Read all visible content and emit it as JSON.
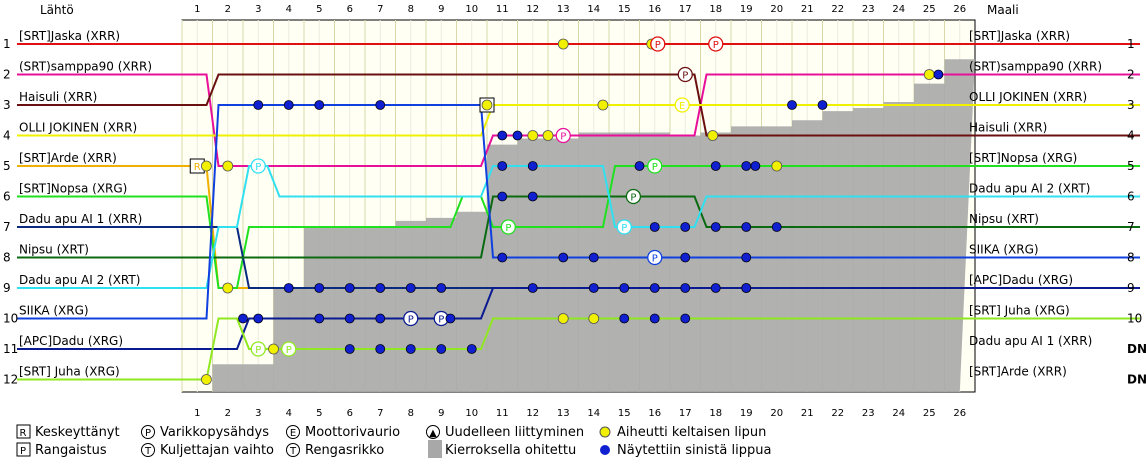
{
  "chart_data": {
    "type": "line",
    "header": {
      "left": "Lähtö",
      "right": "Maali"
    },
    "laps": [
      1,
      2,
      3,
      4,
      5,
      6,
      7,
      8,
      9,
      10,
      11,
      12,
      13,
      14,
      15,
      16,
      17,
      18,
      19,
      20,
      21,
      22,
      23,
      24,
      25,
      26
    ],
    "positions": [
      1,
      2,
      3,
      4,
      5,
      6,
      7,
      8,
      9,
      10,
      11,
      12
    ],
    "start_order": [
      "[SRT]Jaska (XRR)",
      "(SRT)samppa90 (XRR)",
      "Haisuli (XRR)",
      "OLLI JOKINEN (XRR)",
      "[SRT]Arde (XRR)",
      "[SRT]Nopsa (XRG)",
      "Dadu apu AI 1 (XRR)",
      "Nipsu (XRT)",
      "Dadu apu AI 2 (XRT)",
      "SIIKA (XRG)",
      "[APC]Dadu (XRG)",
      "[SRT] Juha (XRG)"
    ],
    "finish_order": [
      "[SRT]Jaska (XRR)",
      "(SRT)samppa90 (XRR)",
      "OLLI JOKINEN (XRR)",
      "Haisuli (XRR)",
      "[SRT]Nopsa (XRG)",
      "Dadu apu AI 2 (XRT)",
      "Nipsu (XRT)",
      "SIIKA (XRG)",
      "[APC]Dadu (XRG)",
      "[SRT] Juha (XRG)",
      "Dadu apu AI 1 (XRR)",
      "[SRT]Arde (XRR)"
    ],
    "finish_marks": [
      "1",
      "2",
      "3",
      "4",
      "5",
      "6",
      "7",
      "8",
      "9",
      "10",
      "DNF",
      "DNF"
    ],
    "series": [
      {
        "name": "[SRT]Jaska (XRR)",
        "color": "#e01010",
        "positions": [
          1,
          1,
          1,
          1,
          1,
          1,
          1,
          1,
          1,
          1,
          1,
          1,
          1,
          1,
          1,
          1,
          1,
          1,
          1,
          1,
          1,
          1,
          1,
          1,
          1,
          1
        ],
        "end_lap": 26,
        "markers": [
          {
            "lap": 13,
            "type": "yellow"
          },
          {
            "lap": 15.9,
            "type": "yellow"
          },
          {
            "lap": 16.1,
            "type": "P"
          },
          {
            "lap": 18,
            "type": "P"
          }
        ]
      },
      {
        "name": "(SRT)samppa90 (XRR)",
        "color": "#e8109a",
        "positions": [
          2,
          5,
          5,
          5,
          5,
          5,
          5,
          5,
          5,
          5,
          4,
          4,
          4,
          4,
          4,
          4,
          4,
          2,
          2,
          2,
          2,
          2,
          2,
          2,
          2,
          2
        ],
        "end_lap": 26,
        "markers": [
          {
            "lap": 2,
            "type": "yellow"
          },
          {
            "lap": 11,
            "type": "blue"
          },
          {
            "lap": 11.5,
            "type": "blue"
          },
          {
            "lap": 12,
            "type": "yellow"
          },
          {
            "lap": 12.5,
            "type": "yellow"
          },
          {
            "lap": 13,
            "type": "P"
          },
          {
            "lap": 25,
            "type": "yellow"
          },
          {
            "lap": 25.3,
            "type": "blue"
          }
        ]
      },
      {
        "name": "Haisuli (XRR)",
        "color": "#6a1010",
        "positions": [
          3,
          2,
          2,
          2,
          2,
          2,
          2,
          2,
          2,
          2,
          2,
          2,
          2,
          2,
          2,
          2,
          2,
          4,
          4,
          4,
          4,
          4,
          4,
          4,
          4,
          4
        ],
        "end_lap": 26,
        "markers": [
          {
            "lap": 17,
            "type": "P"
          },
          {
            "lap": 17.9,
            "type": "yellow"
          }
        ]
      },
      {
        "name": "OLLI JOKINEN (XRR)",
        "color": "#f0f000",
        "positions": [
          4,
          4,
          4,
          4,
          4,
          4,
          4,
          4,
          4,
          4,
          3,
          3,
          3,
          3,
          3,
          3,
          3,
          3,
          3,
          3,
          3,
          3,
          3,
          3,
          3,
          3
        ],
        "end_lap": 26,
        "markers": [
          {
            "lap": 10.5,
            "type": "R"
          },
          {
            "lap": 10.5,
            "type": "yellow"
          },
          {
            "lap": 14.3,
            "type": "yellow"
          },
          {
            "lap": 16.9,
            "type": "E"
          },
          {
            "lap": 20.5,
            "type": "blue"
          },
          {
            "lap": 21.5,
            "type": "blue"
          }
        ]
      },
      {
        "name": "[SRT]Arde (XRR)",
        "color": "#f0b000",
        "positions": [
          5,
          9,
          9,
          9,
          9,
          9,
          9,
          9,
          9,
          9,
          9,
          9,
          9,
          9,
          9,
          9,
          9,
          9,
          9,
          9,
          9,
          9,
          9,
          9,
          9,
          9
        ],
        "end_lap": null,
        "markers": [
          {
            "lap": 1,
            "type": "R"
          },
          {
            "lap": 1.3,
            "type": "yellow"
          },
          {
            "lap": 2,
            "type": "yellow"
          }
        ]
      },
      {
        "name": "[SRT]Nopsa (XRG)",
        "color": "#20e020",
        "positions": [
          6,
          9,
          7,
          7,
          7,
          7,
          7,
          7,
          7,
          6,
          7,
          7,
          7,
          7,
          5,
          5,
          5,
          5,
          5,
          5,
          5,
          5,
          5,
          5,
          5,
          5
        ],
        "end_lap": 26,
        "markers": [
          {
            "lap": 11.2,
            "type": "P"
          },
          {
            "lap": 15.5,
            "type": "blue"
          },
          {
            "lap": 16,
            "type": "P"
          },
          {
            "lap": 18,
            "type": "blue"
          },
          {
            "lap": 19,
            "type": "blue"
          },
          {
            "lap": 19.3,
            "type": "blue"
          },
          {
            "lap": 20,
            "type": "yellow"
          }
        ]
      },
      {
        "name": "Dadu apu AI 1 (XRR)",
        "color": "#0a2a80",
        "positions": [
          7,
          7,
          9,
          9,
          9,
          9,
          9,
          9,
          9,
          9,
          9,
          9,
          9,
          9,
          9,
          9,
          9,
          9,
          9,
          9,
          9,
          9,
          9,
          9,
          9,
          9
        ],
        "end_lap": null,
        "markers": [
          {
            "lap": 4,
            "type": "blue"
          },
          {
            "lap": 5,
            "type": "blue"
          },
          {
            "lap": 6,
            "type": "blue"
          },
          {
            "lap": 7,
            "type": "blue"
          },
          {
            "lap": 8,
            "type": "blue"
          },
          {
            "lap": 9,
            "type": "blue"
          },
          {
            "lap": 19,
            "type": "blue"
          }
        ]
      },
      {
        "name": "Nipsu (XRT)",
        "color": "#0a6a10",
        "positions": [
          8,
          8,
          8,
          8,
          8,
          8,
          8,
          8,
          8,
          8,
          6,
          6,
          6,
          6,
          6,
          6,
          6,
          7,
          7,
          7,
          7,
          7,
          7,
          7,
          7,
          7
        ],
        "end_lap": 26,
        "markers": [
          {
            "lap": 11,
            "type": "blue"
          },
          {
            "lap": 12,
            "type": "blue"
          },
          {
            "lap": 15.3,
            "type": "P"
          },
          {
            "lap": 18,
            "type": "blue"
          },
          {
            "lap": 19,
            "type": "blue"
          },
          {
            "lap": 20,
            "type": "blue"
          }
        ]
      },
      {
        "name": "Dadu apu AI 2 (XRT)",
        "color": "#30e0f0",
        "positions": [
          9,
          7,
          5,
          6,
          6,
          6,
          6,
          6,
          6,
          6,
          5,
          5,
          5,
          5,
          7,
          7,
          7,
          6,
          6,
          6,
          6,
          6,
          6,
          6,
          6,
          6
        ],
        "end_lap": 26,
        "markers": [
          {
            "lap": 3,
            "type": "P"
          },
          {
            "lap": 11,
            "type": "blue"
          },
          {
            "lap": 12,
            "type": "blue"
          },
          {
            "lap": 15,
            "type": "P"
          },
          {
            "lap": 16,
            "type": "blue"
          },
          {
            "lap": 17,
            "type": "blue"
          }
        ]
      },
      {
        "name": "SIIKA (XRG)",
        "color": "#1040e0",
        "positions": [
          10,
          3,
          3,
          3,
          3,
          3,
          3,
          3,
          3,
          3,
          8,
          8,
          8,
          8,
          8,
          8,
          8,
          8,
          8,
          8,
          8,
          8,
          8,
          8,
          8,
          8
        ],
        "end_lap": 26,
        "markers": [
          {
            "lap": 3,
            "type": "blue"
          },
          {
            "lap": 4,
            "type": "blue"
          },
          {
            "lap": 5,
            "type": "blue"
          },
          {
            "lap": 7,
            "type": "blue"
          },
          {
            "lap": 11,
            "type": "blue"
          },
          {
            "lap": 13,
            "type": "blue"
          },
          {
            "lap": 14,
            "type": "blue"
          },
          {
            "lap": 16,
            "type": "P"
          },
          {
            "lap": 17,
            "type": "blue"
          },
          {
            "lap": 19,
            "type": "blue"
          }
        ]
      },
      {
        "name": "[APC]Dadu (XRG)",
        "color": "#0a1a90",
        "positions": [
          11,
          11,
          10,
          10,
          10,
          10,
          10,
          10,
          10,
          10,
          9,
          9,
          9,
          9,
          9,
          9,
          9,
          9,
          9,
          9,
          9,
          9,
          9,
          9,
          9,
          9
        ],
        "end_lap": 26,
        "markers": [
          {
            "lap": 2.5,
            "type": "blue"
          },
          {
            "lap": 3,
            "type": "blue"
          },
          {
            "lap": 5,
            "type": "blue"
          },
          {
            "lap": 6,
            "type": "blue"
          },
          {
            "lap": 7,
            "type": "blue"
          },
          {
            "lap": 8,
            "type": "P"
          },
          {
            "lap": 9,
            "type": "P"
          },
          {
            "lap": 9.3,
            "type": "blue"
          },
          {
            "lap": 12,
            "type": "blue"
          },
          {
            "lap": 14,
            "type": "blue"
          },
          {
            "lap": 15,
            "type": "blue"
          },
          {
            "lap": 16,
            "type": "blue"
          },
          {
            "lap": 17,
            "type": "blue"
          },
          {
            "lap": 18,
            "type": "blue"
          },
          {
            "lap": 19,
            "type": "blue"
          }
        ]
      },
      {
        "name": "[SRT] Juha (XRG)",
        "color": "#90e820",
        "positions": [
          12,
          10,
          11,
          11,
          11,
          11,
          11,
          11,
          11,
          11,
          10,
          10,
          10,
          10,
          10,
          10,
          10,
          10,
          10,
          10,
          10,
          10,
          10,
          10,
          10,
          10
        ],
        "end_lap": 26,
        "markers": [
          {
            "lap": 1.3,
            "type": "yellow"
          },
          {
            "lap": 3,
            "type": "P"
          },
          {
            "lap": 3.5,
            "type": "yellow"
          },
          {
            "lap": 4,
            "type": "P"
          },
          {
            "lap": 6,
            "type": "blue"
          },
          {
            "lap": 7,
            "type": "blue"
          },
          {
            "lap": 8,
            "type": "blue"
          },
          {
            "lap": 9,
            "type": "blue"
          },
          {
            "lap": 10,
            "type": "blue"
          },
          {
            "lap": 13,
            "type": "yellow"
          },
          {
            "lap": 14,
            "type": "yellow"
          },
          {
            "lap": 15,
            "type": "blue"
          },
          {
            "lap": 16,
            "type": "blue"
          },
          {
            "lap": 17,
            "type": "blue"
          }
        ]
      }
    ],
    "lapped_field_bottom_position": [
      12,
      12,
      12,
      9.5,
      7.5,
      7.5,
      7.5,
      7.3,
      7.2,
      7.0,
      4.8,
      4.6,
      4.6,
      4.4,
      4.4,
      4.4,
      4.5,
      4.4,
      4.2,
      4.2,
      4.0,
      3.7,
      3.6,
      3.4,
      2.8,
      2.0
    ],
    "legend": [
      {
        "symbol": "R",
        "label": "Keskeyttänyt"
      },
      {
        "symbol": "P",
        "label": "Varikkopysähdys"
      },
      {
        "symbol": "E",
        "label": "Moottorivaurio"
      },
      {
        "symbol": "▲",
        "label": "Uudelleen liittyminen"
      },
      {
        "symbol": "yellow-dot",
        "label": "Aiheutti keltaisen lipun"
      },
      {
        "symbol": "P",
        "label": "Rangaistus"
      },
      {
        "symbol": "T",
        "label": "Kuljettajan vaihto"
      },
      {
        "symbol": "tyre",
        "label": "Rengasrikko"
      },
      {
        "symbol": "gray-box",
        "label": "Kierroksella ohitettu"
      },
      {
        "symbol": "blue-dot",
        "label": "Näytettiin sinistä lippua"
      }
    ],
    "colors": {
      "grid": "#d8d8a8",
      "lapped": "#a8a8a8",
      "yellow_flag": "#f0f000",
      "blue_flag": "#1020d0"
    }
  }
}
